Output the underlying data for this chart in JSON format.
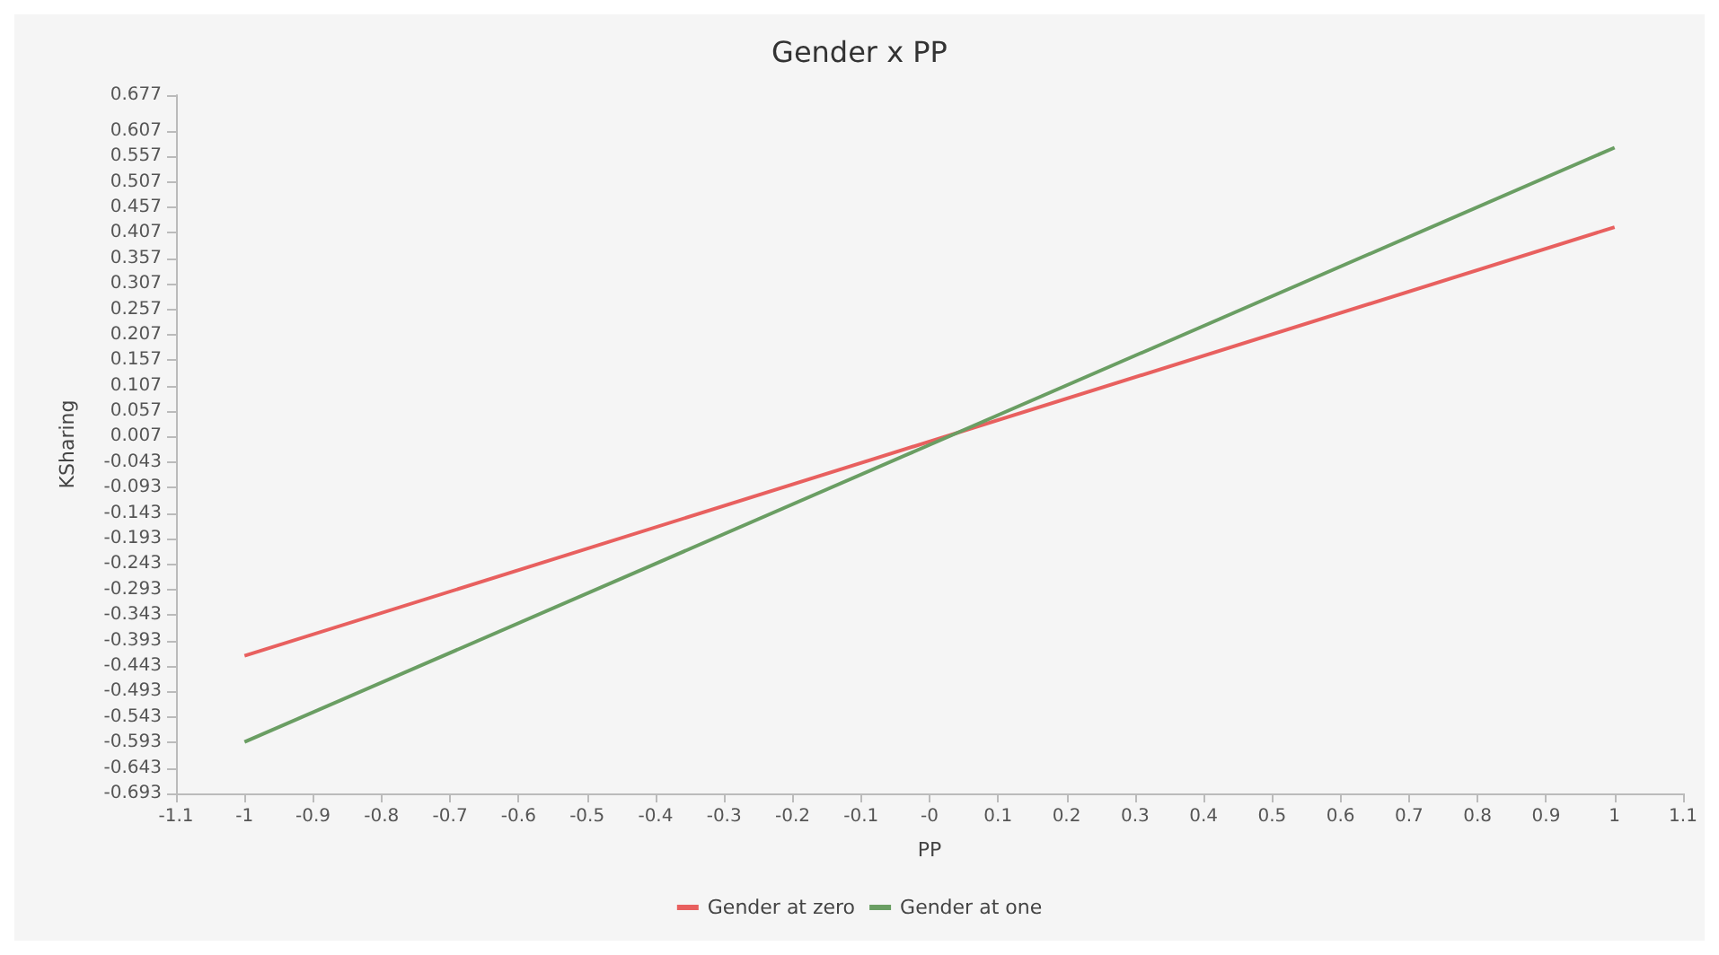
{
  "chart_data": {
    "type": "line",
    "title": "Gender x PP",
    "xlabel": "PP",
    "ylabel": "KSharing",
    "x": [
      -1,
      1
    ],
    "series": [
      {
        "name": "Gender at zero",
        "color": "#e8605f",
        "values": [
          -0.423,
          0.418
        ]
      },
      {
        "name": "Gender at one",
        "color": "#6a9e63",
        "values": [
          -0.592,
          0.574
        ]
      }
    ],
    "xlim": [
      -1.1,
      1.1
    ],
    "xticks": [
      -1.1,
      -1,
      -0.9,
      -0.8,
      -0.7,
      -0.6,
      -0.5,
      -0.4,
      -0.3,
      -0.2,
      -0.1,
      {
        "value": 0,
        "label": "-0"
      },
      0.1,
      0.2,
      0.3,
      0.4,
      0.5,
      0.6,
      0.7,
      0.8,
      0.9,
      1,
      1.1
    ],
    "ylim": [
      -0.693,
      0.677
    ],
    "yticks": [
      0.677,
      0.607,
      0.557,
      0.507,
      0.457,
      0.407,
      0.357,
      0.307,
      0.257,
      0.207,
      0.157,
      0.107,
      0.057,
      0.007,
      -0.043,
      -0.093,
      -0.143,
      -0.193,
      -0.243,
      -0.293,
      -0.343,
      -0.393,
      -0.443,
      -0.493,
      -0.543,
      -0.593,
      -0.643,
      -0.693
    ],
    "grid": false,
    "legend": "bottom",
    "marker": "none",
    "line_style": "solid"
  }
}
